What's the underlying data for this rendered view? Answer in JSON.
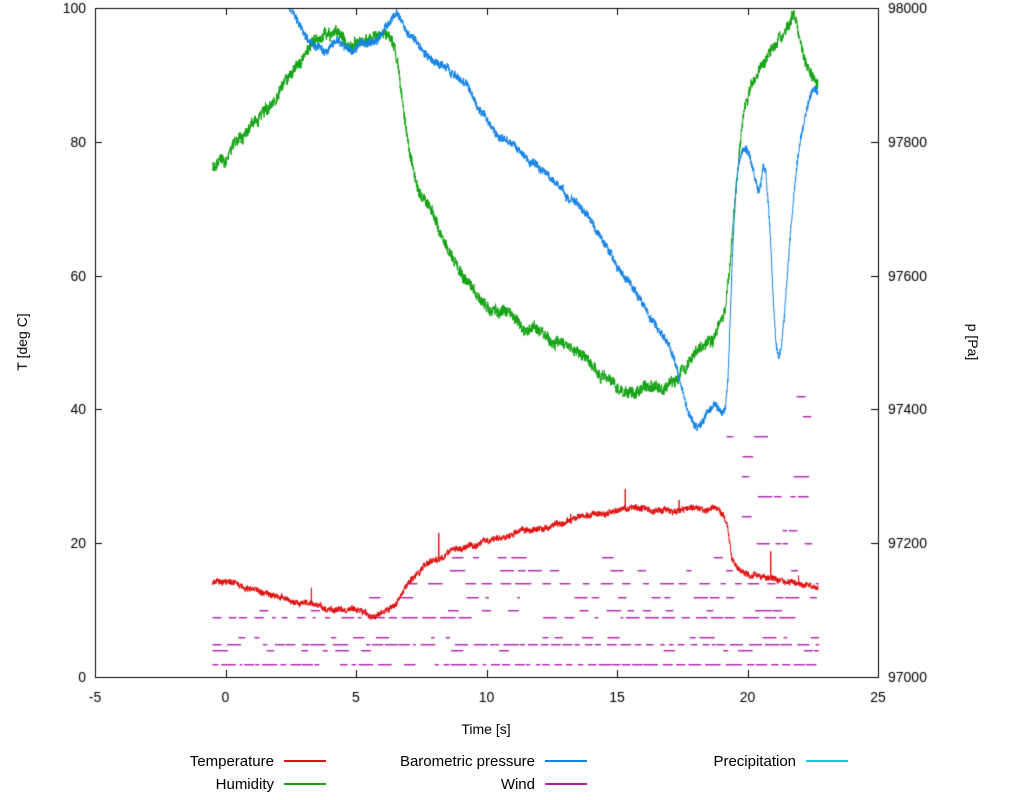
{
  "chart_data": {
    "type": "line",
    "title": "",
    "xlabel": "Time [s]",
    "ylabel_left": "T [deg C]",
    "ylabel_right": "p [Pa]",
    "x_range": [
      -5,
      25
    ],
    "y_left_range": [
      0,
      100
    ],
    "y_right_range": [
      97000,
      98000
    ],
    "x_ticks": [
      -5,
      0,
      5,
      10,
      15,
      20,
      25
    ],
    "y_left_ticks": [
      0,
      20,
      40,
      60,
      80,
      100
    ],
    "y_right_ticks": [
      97000,
      97200,
      97400,
      97600,
      97800,
      98000
    ],
    "grid": false,
    "legend_position": "below",
    "series": [
      {
        "name": "Temperature",
        "color": "#e01212",
        "axis": "left",
        "style": "line",
        "noise": 0.45,
        "spike_chance": 0.0015,
        "spike_size": 4.5,
        "points": [
          [
            -0.5,
            14.2
          ],
          [
            0,
            14.0
          ],
          [
            0.5,
            13.6
          ],
          [
            1,
            13.1
          ],
          [
            1.5,
            12.5
          ],
          [
            2,
            11.9
          ],
          [
            2.5,
            11.3
          ],
          [
            3,
            11.1
          ],
          [
            3.5,
            10.7
          ],
          [
            4,
            10.4
          ],
          [
            4.5,
            10.1
          ],
          [
            5,
            9.9
          ],
          [
            5.5,
            9.6
          ],
          [
            6,
            9.7
          ],
          [
            6.3,
            10.1
          ],
          [
            6.6,
            11.6
          ],
          [
            6.9,
            13.4
          ],
          [
            7.2,
            15.2
          ],
          [
            7.5,
            16.2
          ],
          [
            7.8,
            16.9
          ],
          [
            8.1,
            17.5
          ],
          [
            8.5,
            18.3
          ],
          [
            9,
            19.1
          ],
          [
            9.5,
            19.8
          ],
          [
            10,
            20.3
          ],
          [
            10.5,
            20.8
          ],
          [
            11,
            21.3
          ],
          [
            11.5,
            21.8
          ],
          [
            12,
            22.3
          ],
          [
            12.5,
            22.8
          ],
          [
            13,
            23.2
          ],
          [
            13.5,
            23.8
          ],
          [
            14,
            24.2
          ],
          [
            14.5,
            24.7
          ],
          [
            15,
            25.0
          ],
          [
            15.5,
            25.3
          ],
          [
            16,
            25.4
          ],
          [
            16.4,
            25.0
          ],
          [
            16.8,
            25.2
          ],
          [
            17.2,
            24.8
          ],
          [
            17.6,
            25.0
          ],
          [
            18,
            25.2
          ],
          [
            18.4,
            25.0
          ],
          [
            18.8,
            25.2
          ],
          [
            19.1,
            24.4
          ],
          [
            19.25,
            22.5
          ],
          [
            19.4,
            18.0
          ],
          [
            19.55,
            16.8
          ],
          [
            19.8,
            15.8
          ],
          [
            20.2,
            15.2
          ],
          [
            20.7,
            14.8
          ],
          [
            21.2,
            14.5
          ],
          [
            21.7,
            14.2
          ],
          [
            22.2,
            13.9
          ],
          [
            22.7,
            13.4
          ]
        ]
      },
      {
        "name": "Humidity",
        "color": "#14a414",
        "axis": "left",
        "style": "line",
        "noise": 0.85,
        "spike_chance": 0,
        "spike_size": 0,
        "points": [
          [
            -0.5,
            76
          ],
          [
            0,
            78
          ],
          [
            0.5,
            80
          ],
          [
            1,
            82.5
          ],
          [
            1.5,
            84.5
          ],
          [
            2,
            87.5
          ],
          [
            2.5,
            90.5
          ],
          [
            3,
            93
          ],
          [
            3.3,
            94.5
          ],
          [
            3.6,
            95.5
          ],
          [
            4,
            96.5
          ],
          [
            4.3,
            96
          ],
          [
            4.7,
            94.8
          ],
          [
            5,
            94.5
          ],
          [
            5.4,
            95.2
          ],
          [
            5.8,
            96.2
          ],
          [
            6.1,
            96.6
          ],
          [
            6.3,
            95.8
          ],
          [
            6.5,
            94
          ],
          [
            6.7,
            89
          ],
          [
            6.9,
            83
          ],
          [
            7.1,
            78
          ],
          [
            7.3,
            74
          ],
          [
            7.5,
            71.5
          ],
          [
            7.8,
            70.2
          ],
          [
            8,
            68.5
          ],
          [
            8.4,
            65
          ],
          [
            8.8,
            62
          ],
          [
            9.2,
            59.5
          ],
          [
            9.6,
            57
          ],
          [
            10,
            55.5
          ],
          [
            10.3,
            54
          ],
          [
            10.6,
            55
          ],
          [
            11,
            53.5
          ],
          [
            11.4,
            52
          ],
          [
            11.7,
            53
          ],
          [
            12,
            51.8
          ],
          [
            12.4,
            50.4
          ],
          [
            12.8,
            50
          ],
          [
            13.2,
            49
          ],
          [
            13.6,
            48.2
          ],
          [
            14,
            47
          ],
          [
            14.4,
            45.4
          ],
          [
            14.8,
            44.2
          ],
          [
            15.2,
            43.2
          ],
          [
            15.6,
            42.6
          ],
          [
            16,
            43.2
          ],
          [
            16.4,
            43.6
          ],
          [
            16.8,
            43
          ],
          [
            17.2,
            44.5
          ],
          [
            17.6,
            46.5
          ],
          [
            18,
            48.5
          ],
          [
            18.4,
            50
          ],
          [
            18.7,
            50.5
          ],
          [
            19,
            53.5
          ],
          [
            19.15,
            55
          ],
          [
            19.3,
            61
          ],
          [
            19.5,
            71
          ],
          [
            19.7,
            80
          ],
          [
            19.9,
            85
          ],
          [
            20.1,
            87.5
          ],
          [
            20.4,
            90
          ],
          [
            20.8,
            92.5
          ],
          [
            21.2,
            95
          ],
          [
            21.5,
            97
          ],
          [
            21.7,
            98.8
          ],
          [
            21.85,
            98.5
          ],
          [
            22,
            95.5
          ],
          [
            22.2,
            92.5
          ],
          [
            22.45,
            90
          ],
          [
            22.7,
            88
          ]
        ]
      },
      {
        "name": "Barometric pressure",
        "color": "#1583e6",
        "axis": "right",
        "style": "line",
        "noise": 6,
        "spike_chance": 0,
        "spike_size": 0,
        "points": [
          [
            2.45,
            98000
          ],
          [
            2.6,
            97990
          ],
          [
            2.8,
            97976
          ],
          [
            3.0,
            97962
          ],
          [
            3.2,
            97950
          ],
          [
            3.5,
            97940
          ],
          [
            3.8,
            97933
          ],
          [
            4.0,
            97938
          ],
          [
            4.2,
            97945
          ],
          [
            4.5,
            97941
          ],
          [
            4.8,
            97937
          ],
          [
            5.0,
            97940
          ],
          [
            5.2,
            97946
          ],
          [
            5.5,
            97942
          ],
          [
            5.8,
            97951
          ],
          [
            6.0,
            97962
          ],
          [
            6.2,
            97976
          ],
          [
            6.4,
            97986
          ],
          [
            6.55,
            97988
          ],
          [
            6.7,
            97980
          ],
          [
            6.9,
            97968
          ],
          [
            7.1,
            97958
          ],
          [
            7.3,
            97950
          ],
          [
            7.5,
            97941
          ],
          [
            7.8,
            97928
          ],
          [
            8.0,
            97921
          ],
          [
            8.3,
            97915
          ],
          [
            8.6,
            97906
          ],
          [
            9.0,
            97891
          ],
          [
            9.3,
            97878
          ],
          [
            9.6,
            97861
          ],
          [
            9.9,
            97841
          ],
          [
            10.1,
            97823
          ],
          [
            10.3,
            97811
          ],
          [
            10.5,
            97801
          ],
          [
            10.7,
            97806
          ],
          [
            10.9,
            97799
          ],
          [
            11.1,
            97791
          ],
          [
            11.4,
            97781
          ],
          [
            11.7,
            97771
          ],
          [
            12.0,
            97762
          ],
          [
            12.3,
            97752
          ],
          [
            12.6,
            97743
          ],
          [
            13.0,
            97729
          ],
          [
            13.3,
            97713
          ],
          [
            13.6,
            97701
          ],
          [
            13.9,
            97686
          ],
          [
            14.2,
            97666
          ],
          [
            14.5,
            97646
          ],
          [
            14.8,
            97629
          ],
          [
            15.1,
            97611
          ],
          [
            15.4,
            97593
          ],
          [
            15.7,
            97576
          ],
          [
            16.0,
            97558
          ],
          [
            16.3,
            97540
          ],
          [
            16.6,
            97521
          ],
          [
            16.9,
            97501
          ],
          [
            17.1,
            97481
          ],
          [
            17.3,
            97461
          ],
          [
            17.5,
            97431
          ],
          [
            17.7,
            97401
          ],
          [
            17.9,
            97379
          ],
          [
            18.1,
            97371
          ],
          [
            18.3,
            97381
          ],
          [
            18.5,
            97399
          ],
          [
            18.7,
            97406
          ],
          [
            18.9,
            97399
          ],
          [
            19.05,
            97396
          ],
          [
            19.15,
            97405
          ],
          [
            19.25,
            97450
          ],
          [
            19.35,
            97550
          ],
          [
            19.45,
            97655
          ],
          [
            19.55,
            97722
          ],
          [
            19.65,
            97762
          ],
          [
            19.8,
            97786
          ],
          [
            19.95,
            97790
          ],
          [
            20.1,
            97778
          ],
          [
            20.2,
            97758
          ],
          [
            20.3,
            97738
          ],
          [
            20.4,
            97722
          ],
          [
            20.5,
            97732
          ],
          [
            20.6,
            97758
          ],
          [
            20.7,
            97748
          ],
          [
            20.8,
            97698
          ],
          [
            20.9,
            97638
          ],
          [
            21.0,
            97558
          ],
          [
            21.1,
            97498
          ],
          [
            21.2,
            97478
          ],
          [
            21.3,
            97492
          ],
          [
            21.4,
            97532
          ],
          [
            21.5,
            97582
          ],
          [
            21.6,
            97632
          ],
          [
            21.7,
            97682
          ],
          [
            21.8,
            97722
          ],
          [
            21.9,
            97762
          ],
          [
            22.0,
            97792
          ],
          [
            22.15,
            97822
          ],
          [
            22.3,
            97852
          ],
          [
            22.5,
            97880
          ],
          [
            22.6,
            97886
          ],
          [
            22.7,
            97874
          ]
        ]
      },
      {
        "name": "Wind",
        "color": "#b020b0",
        "axis": "left",
        "style": "dotted-bands",
        "bands_legend": [
          "level",
          "t_start",
          "t_end",
          "density"
        ],
        "bands": [
          [
            2,
            -0.5,
            22.7,
            0.9
          ],
          [
            4,
            -0.5,
            22.7,
            0.5
          ],
          [
            5,
            -0.5,
            22.7,
            0.85
          ],
          [
            6,
            -0.3,
            22.7,
            0.45
          ],
          [
            9,
            -0.5,
            22.7,
            0.8
          ],
          [
            10,
            0.5,
            22.7,
            0.5
          ],
          [
            12,
            5.5,
            22.7,
            0.75
          ],
          [
            14,
            7.0,
            22.7,
            0.7
          ],
          [
            16,
            7.5,
            22.7,
            0.5
          ],
          [
            18,
            8.0,
            21.0,
            0.4
          ],
          [
            21,
            9.5,
            19.0,
            0.15
          ],
          [
            25,
            10.0,
            17.0,
            0.08
          ],
          [
            30,
            10.5,
            16.5,
            0.05
          ],
          [
            20,
            19.1,
            22.6,
            0.5
          ],
          [
            22,
            19.1,
            22.6,
            0.5
          ],
          [
            24,
            19.1,
            22.6,
            0.45
          ],
          [
            27,
            19.1,
            22.6,
            0.4
          ],
          [
            30,
            19.2,
            22.5,
            0.4
          ],
          [
            33,
            19.2,
            22.5,
            0.35
          ],
          [
            36,
            19.2,
            22.4,
            0.3
          ],
          [
            39,
            19.3,
            22.4,
            0.25
          ],
          [
            42,
            19.3,
            22.3,
            0.2
          ],
          [
            45,
            19.4,
            22.2,
            0.15
          ]
        ]
      },
      {
        "name": "Precipitation",
        "color": "#00d0d0",
        "axis": "left",
        "style": "line",
        "noise": 0,
        "spike_chance": 0,
        "spike_size": 0,
        "points": []
      }
    ]
  }
}
